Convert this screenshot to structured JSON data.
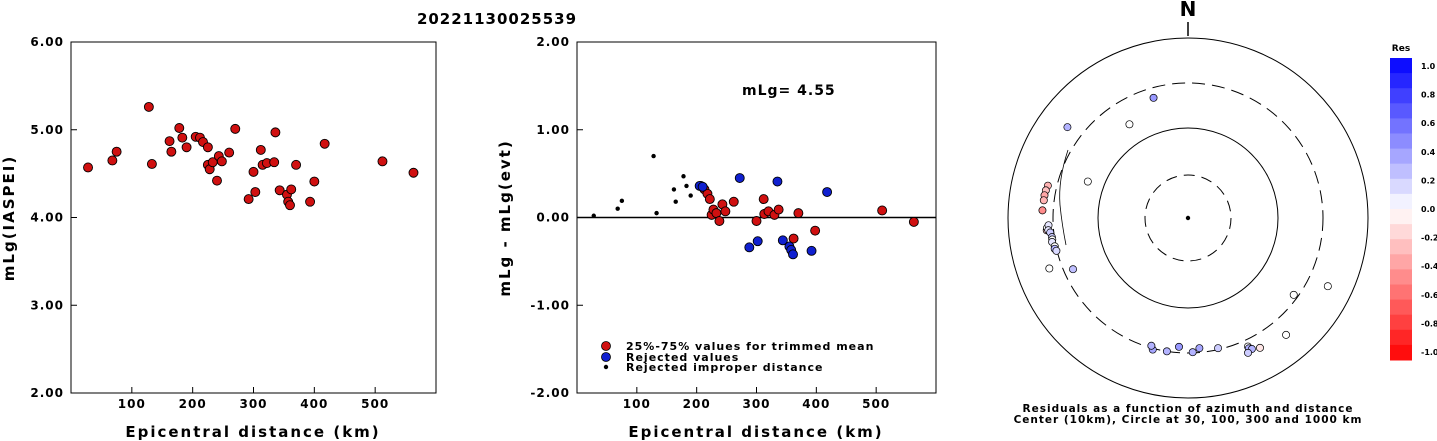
{
  "event_id": "20221130025539",
  "chart_data": [
    {
      "type": "scatter",
      "ylabel": "mLg(IASPEI)",
      "xlabel": "Epicentral distance (km)",
      "xlim": [
        0,
        600
      ],
      "ylim": [
        2.0,
        6.0
      ],
      "yticks": [
        "2.00",
        "3.00",
        "4.00",
        "5.00",
        "6.00"
      ],
      "xticks": [
        "100",
        "200",
        "300",
        "400",
        "500"
      ],
      "grid": false,
      "points": [
        [
          28,
          4.57
        ],
        [
          68,
          4.65
        ],
        [
          75,
          4.75
        ],
        [
          128,
          5.26
        ],
        [
          133,
          4.61
        ],
        [
          162,
          4.87
        ],
        [
          165,
          4.75
        ],
        [
          178,
          5.02
        ],
        [
          183,
          4.91
        ],
        [
          190,
          4.8
        ],
        [
          205,
          4.92
        ],
        [
          212,
          4.91
        ],
        [
          217,
          4.86
        ],
        [
          225,
          4.8
        ],
        [
          225,
          4.6
        ],
        [
          228,
          4.55
        ],
        [
          233,
          4.63
        ],
        [
          240,
          4.42
        ],
        [
          243,
          4.7
        ],
        [
          248,
          4.64
        ],
        [
          260,
          4.74
        ],
        [
          270,
          5.01
        ],
        [
          292,
          4.21
        ],
        [
          300,
          4.52
        ],
        [
          303,
          4.29
        ],
        [
          312,
          4.77
        ],
        [
          315,
          4.6
        ],
        [
          322,
          4.62
        ],
        [
          334,
          4.63
        ],
        [
          336,
          4.97
        ],
        [
          343,
          4.31
        ],
        [
          355,
          4.26
        ],
        [
          357,
          4.18
        ],
        [
          360,
          4.14
        ],
        [
          362,
          4.32
        ],
        [
          370,
          4.6
        ],
        [
          393,
          4.18
        ],
        [
          400,
          4.41
        ],
        [
          417,
          4.84
        ],
        [
          512,
          4.64
        ],
        [
          563,
          4.51
        ]
      ]
    },
    {
      "type": "scatter",
      "ylabel": "mLg - mLg(evt)",
      "xlabel": "Epicentral distance (km)",
      "xlim": [
        0,
        600
      ],
      "ylim": [
        -2.0,
        2.0
      ],
      "yticks": [
        "-2.00",
        "-1.00",
        "0.00",
        "1.00",
        "2.00"
      ],
      "xticks": [
        "100",
        "200",
        "300",
        "400",
        "500"
      ],
      "reference_line": 0.0,
      "annotation": "mLg= 4.55",
      "legend_position": "bottom-left",
      "series": [
        {
          "name": "25%-75% values for trimmed mean",
          "color": "#d01010",
          "points": [
            [
              207,
              0.36
            ],
            [
              213,
              0.32
            ],
            [
              218,
              0.27
            ],
            [
              222,
              0.21
            ],
            [
              225,
              0.03
            ],
            [
              228,
              0.09
            ],
            [
              233,
              0.05
            ],
            [
              238,
              -0.04
            ],
            [
              243,
              0.15
            ],
            [
              248,
              0.07
            ],
            [
              262,
              0.18
            ],
            [
              300,
              -0.04
            ],
            [
              312,
              0.21
            ],
            [
              313,
              0.04
            ],
            [
              320,
              0.07
            ],
            [
              330,
              0.03
            ],
            [
              337,
              0.09
            ],
            [
              362,
              -0.24
            ],
            [
              370,
              0.05
            ],
            [
              398,
              -0.15
            ],
            [
              510,
              0.08
            ],
            [
              563,
              -0.05
            ]
          ]
        },
        {
          "name": "Rejected values",
          "color": "#1020d0",
          "points": [
            [
              205,
              0.36
            ],
            [
              210,
              0.35
            ],
            [
              272,
              0.45
            ],
            [
              288,
              -0.34
            ],
            [
              302,
              -0.27
            ],
            [
              335,
              0.41
            ],
            [
              344,
              -0.26
            ],
            [
              355,
              -0.33
            ],
            [
              358,
              -0.37
            ],
            [
              361,
              -0.42
            ],
            [
              392,
              -0.38
            ],
            [
              418,
              0.29
            ]
          ]
        },
        {
          "name": "Rejected improper distance",
          "color": "#000000",
          "points": [
            [
              28,
              0.02
            ],
            [
              68,
              0.1
            ],
            [
              75,
              0.19
            ],
            [
              128,
              0.7
            ],
            [
              133,
              0.05
            ],
            [
              162,
              0.32
            ],
            [
              165,
              0.18
            ],
            [
              178,
              0.47
            ],
            [
              183,
              0.36
            ],
            [
              190,
              0.25
            ]
          ]
        }
      ]
    },
    {
      "type": "scatter",
      "subtype": "polar",
      "north_label": "N",
      "caption_line1": "Residuals as a function of azimuth and distance",
      "caption_line2": "Center (10km), Circle at 30, 100, 300 and 1000 km",
      "colorbar_title": "Res",
      "colorbar_ticks": [
        "1.0",
        "0.8",
        "0.6",
        "0.4",
        "0.2",
        "0.0",
        "-0.2",
        "-0.4",
        "-0.6",
        "-0.8",
        "-1.0"
      ],
      "points_az_dist_res": [
        [
          307,
          460,
          0.3
        ],
        [
          344,
          235,
          0.4
        ],
        [
          328,
          165,
          0.0
        ],
        [
          290,
          150,
          0.0
        ],
        [
          126,
          270,
          0.0
        ],
        [
          116,
          520,
          0.0
        ],
        [
          250,
          420,
          0.0
        ],
        [
          283,
          380,
          -0.3
        ],
        [
          281,
          390,
          -0.25
        ],
        [
          279,
          395,
          -0.35
        ],
        [
          277,
          395,
          -0.3
        ],
        [
          273,
          400,
          -0.45
        ],
        [
          265,
          360,
          -0.2
        ],
        [
          266,
          355,
          0.0
        ],
        [
          267,
          340,
          0.1
        ],
        [
          265,
          345,
          0.1
        ],
        [
          264,
          330,
          0.2
        ],
        [
          262,
          320,
          0.2
        ],
        [
          261,
          320,
          0.0
        ],
        [
          260,
          325,
          0.1
        ],
        [
          258,
          310,
          0.0
        ],
        [
          257,
          315,
          0.3
        ],
        [
          256,
          305,
          0.15
        ],
        [
          246,
          240,
          0.25
        ],
        [
          195,
          310,
          0.35
        ],
        [
          196,
          285,
          0.3
        ],
        [
          189,
          300,
          0.3
        ],
        [
          184,
          260,
          0.4
        ],
        [
          178,
          295,
          0.3
        ],
        [
          175,
          270,
          0.35
        ],
        [
          167,
          290,
          0.2
        ],
        [
          155,
          360,
          0.0
        ],
        [
          155,
          380,
          0.3
        ],
        [
          154,
          400,
          0.3
        ],
        [
          156,
          420,
          0.2
        ],
        [
          151,
          430,
          -0.1
        ],
        [
          140,
          480,
          0.0
        ]
      ]
    }
  ]
}
